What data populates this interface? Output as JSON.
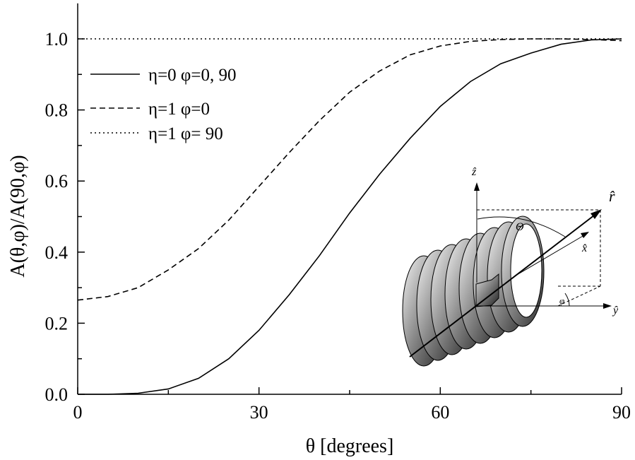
{
  "chart_data": {
    "type": "line",
    "x_label": "θ [degrees]",
    "y_label": "A(θ,φ)/A(90,φ)",
    "x": [
      0,
      5,
      10,
      15,
      20,
      25,
      30,
      35,
      40,
      45,
      50,
      55,
      60,
      65,
      70,
      75,
      80,
      85,
      90
    ],
    "series": [
      {
        "name": "η=0 φ=0, 90",
        "color": "#000000",
        "dash": "solid",
        "values": [
          0,
          0,
          0.003,
          0.015,
          0.045,
          0.1,
          0.18,
          0.28,
          0.39,
          0.51,
          0.62,
          0.72,
          0.81,
          0.88,
          0.93,
          0.96,
          0.985,
          0.997,
          1.0
        ]
      },
      {
        "name": "η=1 φ=0",
        "color": "#000000",
        "dash": "dashed",
        "values": [
          0.265,
          0.275,
          0.3,
          0.35,
          0.41,
          0.49,
          0.585,
          0.68,
          0.77,
          0.85,
          0.91,
          0.955,
          0.98,
          0.993,
          0.998,
          1.0,
          1.0,
          0.998,
          0.995
        ]
      },
      {
        "name": "η=1 φ= 90",
        "color": "#000000",
        "dash": "dotted",
        "values": [
          1,
          1,
          1,
          1,
          1,
          1,
          1,
          1,
          1,
          1,
          1,
          1,
          1,
          1,
          1,
          1,
          1,
          1,
          1
        ]
      }
    ],
    "xlim": [
      0,
      90
    ],
    "xticks": [
      0,
      30,
      60,
      90
    ],
    "x_minor_ticks": [
      15,
      45,
      75
    ],
    "ylim": [
      0,
      1.1
    ],
    "yticks": [
      {
        "value": 0,
        "label": "0.0"
      },
      {
        "value": 0.2,
        "label": "0.2"
      },
      {
        "value": 0.4,
        "label": "0.4"
      },
      {
        "value": 0.6,
        "label": "0.6"
      },
      {
        "value": 0.8,
        "label": "0.8"
      },
      {
        "value": 1,
        "label": "1.0"
      }
    ],
    "y_minor_ticks": [
      0.1,
      0.3,
      0.5,
      0.7,
      0.9
    ],
    "legend": "upper-left"
  },
  "inset_labels": {
    "z": "ẑ",
    "r": "r̂",
    "theta": "Θ",
    "x": "x̂",
    "y": "ŷ",
    "phi": "φ"
  }
}
